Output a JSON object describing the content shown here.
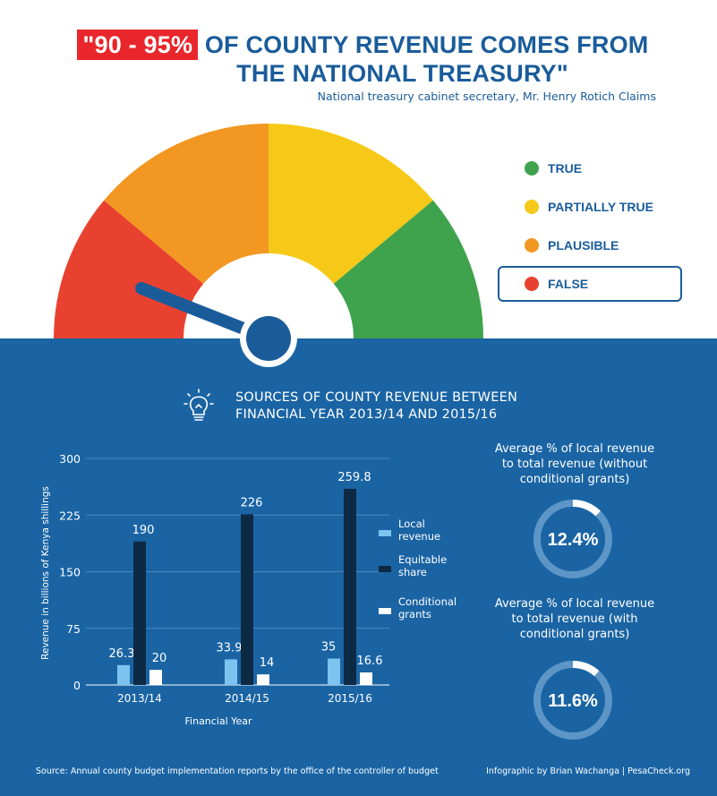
{
  "header": {
    "highlight": "\"90 - 95%",
    "title_rest_line1": "OF COUNTY REVENUE COMES FROM",
    "title_line2": "THE NATIONAL TREASURY\"",
    "claimant": "National treasury cabinet secretary, Mr. Henry Rotich Claims"
  },
  "rating": {
    "items": [
      {
        "label": "TRUE",
        "color": "#3fa34d"
      },
      {
        "label": "PARTIALLY TRUE",
        "color": "#f6c918"
      },
      {
        "label": "PLAUSIBLE",
        "color": "#f29722"
      },
      {
        "label": "FALSE",
        "color": "#e8412f"
      }
    ],
    "selected": "FALSE"
  },
  "section": {
    "title_line1": "SOURCES OF COUNTY REVENUE BETWEEN",
    "title_line2": "FINANCIAL YEAR 2013/14 AND 2015/16",
    "icon": "lightbulb-icon"
  },
  "chart_data": {
    "type": "bar",
    "categories": [
      "2013/14",
      "2014/15",
      "2015/16"
    ],
    "series": [
      {
        "name": "Local revenue",
        "values": [
          26.3,
          33.9,
          35
        ],
        "color": "#7cc3f0"
      },
      {
        "name": "Equitable share",
        "values": [
          190,
          226,
          259.8
        ],
        "color": "#0d2a45"
      },
      {
        "name": "Conditional grants",
        "values": [
          20,
          14,
          16.6
        ],
        "color": "#ffffff"
      }
    ],
    "yticks": [
      "0",
      "75",
      "150",
      "225",
      "300"
    ],
    "ylim": [
      0,
      300
    ],
    "ylabel": "Revenue in billions of Kenya shillings",
    "xlabel": "Financial Year",
    "data_labels": [
      [
        "26.3",
        "190",
        "20"
      ],
      [
        "33.9",
        "226",
        "14"
      ],
      [
        "35",
        "259.8",
        "16.6"
      ]
    ],
    "legend_position": "right"
  },
  "stats": [
    {
      "label_line1": "Average % of local revenue",
      "label_line2": "to total revenue (without",
      "label_line3": "conditional grants)",
      "value_text": "12.4%",
      "value": 12.4
    },
    {
      "label_line1": "Average % of local revenue",
      "label_line2": "to total revenue (with",
      "label_line3": "conditional grants)",
      "value_text": "11.6%",
      "value": 11.6
    }
  ],
  "footer": {
    "source": "Source: Annual county budget implementation reports by the office of the controller of budget",
    "credit": "Infographic by Brian Wachanga | PesaCheck.org"
  }
}
